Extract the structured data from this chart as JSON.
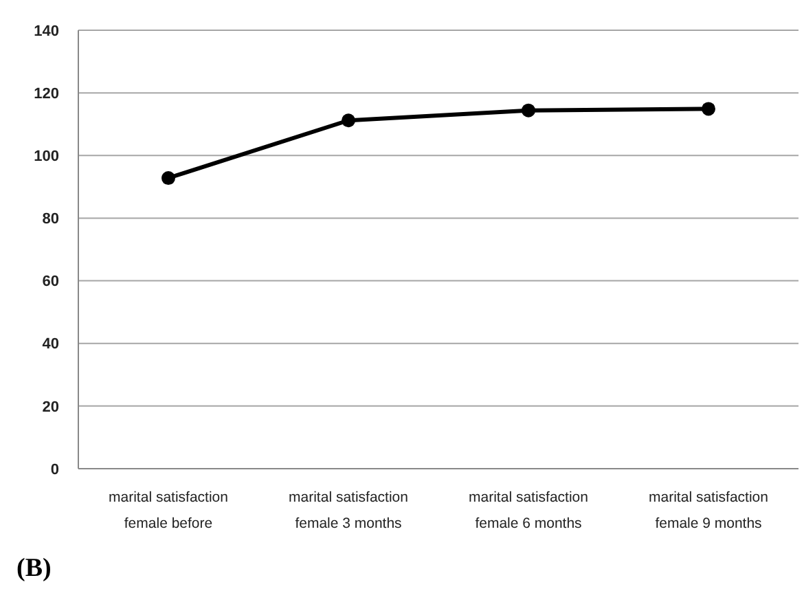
{
  "chart_data": {
    "type": "line",
    "title": "(B)",
    "categories": [
      "marital satisfaction female before",
      "marital satisfaction female 3 months",
      "marital satisfaction female 6 months",
      "marital satisfaction female 9 months"
    ],
    "series": [
      {
        "color": "#000000",
        "values": [
          92.8,
          111.2,
          114.4,
          114.9
        ]
      }
    ],
    "ylim": [
      0,
      140
    ],
    "yticks": [
      0,
      20,
      40,
      60,
      80,
      100,
      120,
      140
    ],
    "grid": "y",
    "marker": "circle",
    "line_style": "solid"
  }
}
